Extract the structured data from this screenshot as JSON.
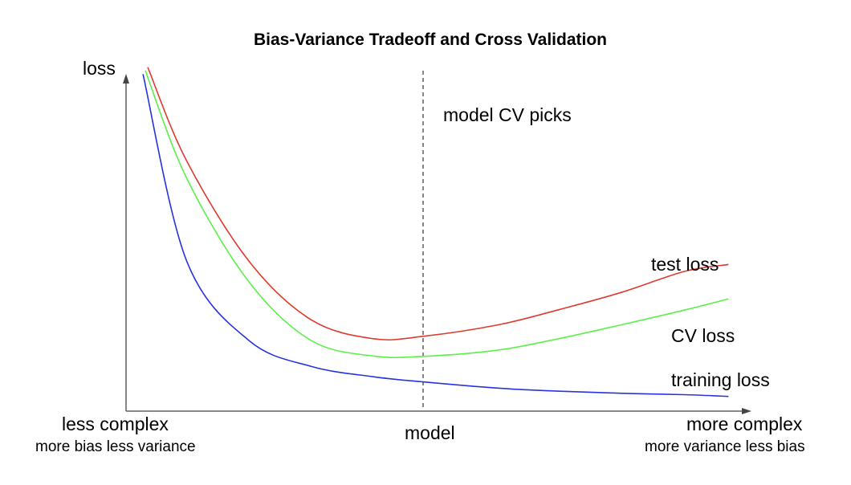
{
  "title": "Bias-Variance Tradeoff and Cross Validation",
  "axes": {
    "y_label": "loss",
    "x_center_label": "model",
    "x_left_label": "less complex",
    "x_left_sublabel": "more bias less variance",
    "x_right_label": "more complex",
    "x_right_sublabel": "more variance less bias"
  },
  "annotation": {
    "vline_label": "model CV picks"
  },
  "colors": {
    "test_loss": "#e03a2e",
    "cv_loss": "#5cf04a",
    "training_loss": "#2733e0",
    "axis": "#444444",
    "vline": "#444444"
  },
  "chart_data": {
    "type": "line",
    "title": "Bias-Variance Tradeoff and Cross Validation",
    "xlabel": "model",
    "ylabel": "loss",
    "x_range_labels": [
      "less complex",
      "more complex"
    ],
    "xlim": [
      0,
      1
    ],
    "ylim": [
      0,
      1
    ],
    "grid": false,
    "vline": {
      "x": 0.48,
      "label": "model CV picks",
      "style": "dashed"
    },
    "x": [
      0.03,
      0.1,
      0.2,
      0.3,
      0.4,
      0.48,
      0.6,
      0.7,
      0.8,
      0.9,
      0.97
    ],
    "series": [
      {
        "name": "test loss",
        "color": "#e03a2e",
        "values": [
          0.99,
          0.72,
          0.43,
          0.26,
          0.205,
          0.212,
          0.245,
          0.29,
          0.34,
          0.4,
          0.42
        ]
      },
      {
        "name": "CV loss",
        "color": "#5cf04a",
        "values": [
          0.98,
          0.67,
          0.37,
          0.2,
          0.155,
          0.154,
          0.172,
          0.206,
          0.246,
          0.288,
          0.32
        ]
      },
      {
        "name": "training loss",
        "color": "#2733e0",
        "values": [
          0.97,
          0.43,
          0.2,
          0.125,
          0.095,
          0.08,
          0.062,
          0.053,
          0.047,
          0.043,
          0.038
        ]
      }
    ]
  }
}
